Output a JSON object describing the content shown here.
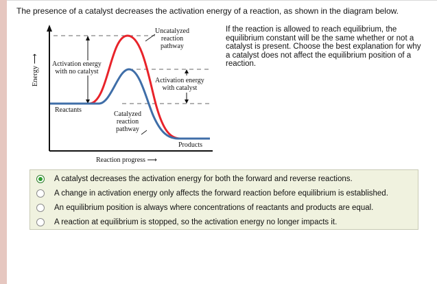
{
  "question": "The presence of a catalyst decreases the activation energy of a reaction, as shown in the diagram below.",
  "instructions": "If the reaction is allowed to reach equilibrium, the equilibrium constant will be the same whether or not a catalyst is present. Choose the best explanation for why a catalyst does not affect the equilibrium position of a reaction.",
  "diagram": {
    "y_axis_label": "Energy",
    "x_axis_label": "Reaction progress",
    "uncatalyzed_label": [
      "Uncatalyzed",
      "reaction",
      "pathway"
    ],
    "catalyzed_label": [
      "Catalyzed",
      "reaction",
      "pathway"
    ],
    "activation_no_catalyst": [
      "Activation energy",
      "with no catalyst"
    ],
    "activation_with_catalyst": [
      "Activation energy",
      "with catalyst"
    ],
    "reactants_label": "Reactants",
    "products_label": "Products",
    "colors": {
      "uncatalyzed": "#e8232a",
      "catalyzed": "#3f6ea8",
      "axis": "#111111",
      "dashes": "#555555"
    }
  },
  "choices": [
    {
      "text": "A catalyst decreases the activation energy for both the forward and reverse reactions.",
      "selected": true
    },
    {
      "text": "A change in activation energy only affects the forward reaction before equilibrium is established.",
      "selected": false
    },
    {
      "text": "An equilibrium position is always where concentrations of reactants and products are equal.",
      "selected": false
    },
    {
      "text": "A reaction at equilibrium is stopped, so the activation energy no longer impacts it.",
      "selected": false
    }
  ]
}
